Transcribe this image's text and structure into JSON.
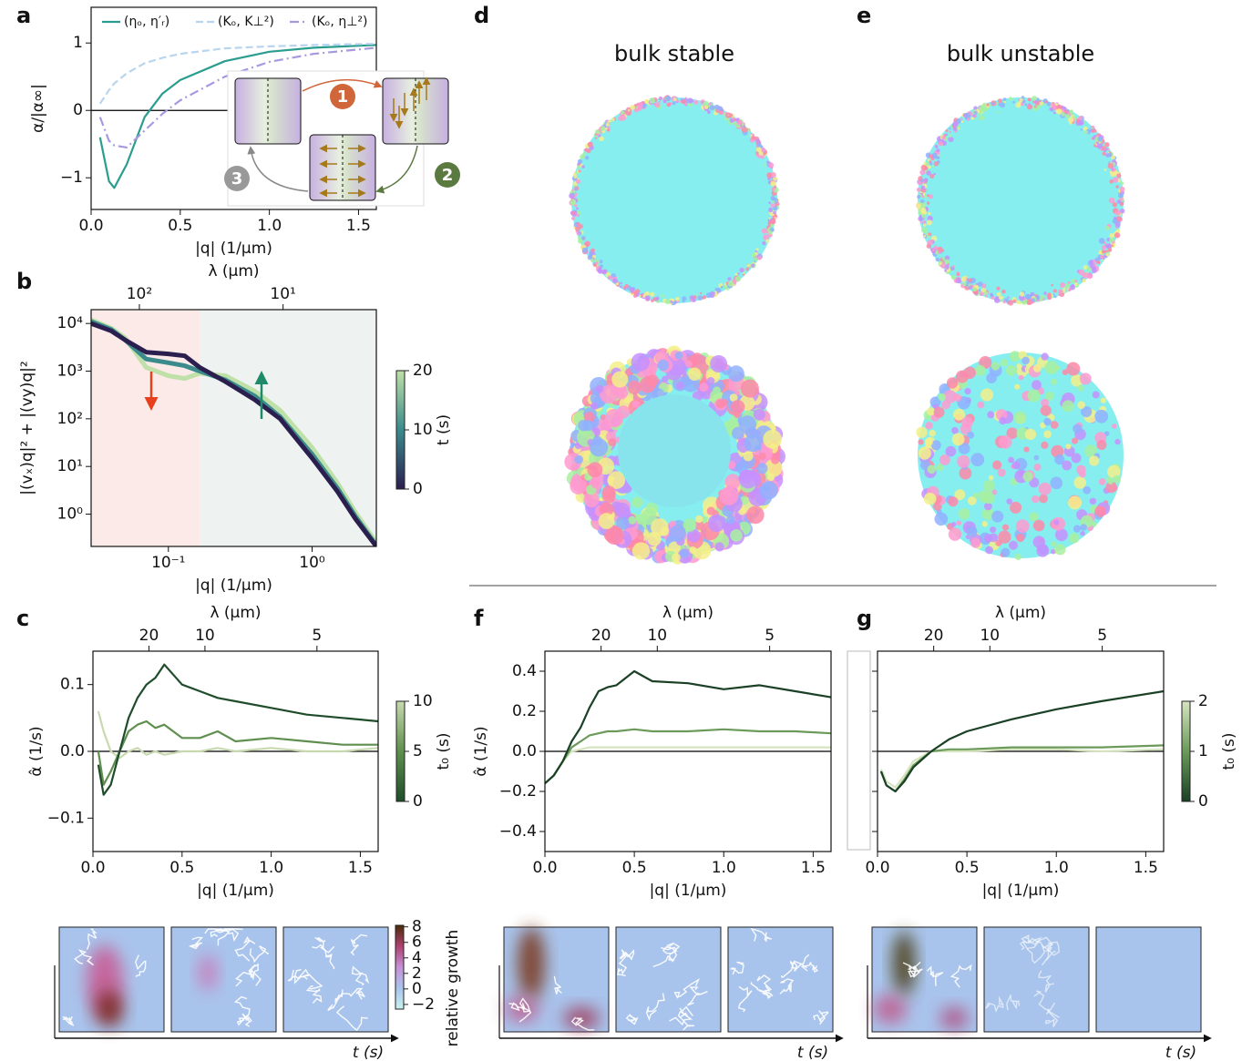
{
  "chart_data": [
    {
      "label": "a",
      "type": "line",
      "xlabel": "|q| (1/μm)",
      "ylabel": "α/|α∞|",
      "xlim": [
        0,
        1.6
      ],
      "xticks": [
        {
          "value": 0,
          "label": "0.0"
        },
        0.5,
        {
          "value": 1,
          "label": "1.0"
        },
        1.5
      ],
      "ylim": [
        -1.47,
        1.53
      ],
      "yticks": [
        {
          "value": -1,
          "label": "−1"
        },
        0,
        1
      ],
      "hline": 0,
      "legend": "upper center",
      "x": [
        0.05,
        0.1,
        0.13,
        0.2,
        0.3,
        0.4,
        0.5,
        0.75,
        1.0,
        1.25,
        1.6
      ],
      "series": [
        {
          "name": "(ηₒ, η′ᵣ)",
          "color": "#2a9d8f",
          "style": "solid",
          "values": [
            -0.4,
            -1.05,
            -1.15,
            -0.8,
            -0.1,
            0.25,
            0.45,
            0.73,
            0.87,
            0.93,
            0.97
          ]
        },
        {
          "name": "(Kₒ, K⊥²)",
          "color": "#b9d5ee",
          "style": "dashed",
          "values": [
            0.1,
            0.3,
            0.4,
            0.55,
            0.7,
            0.78,
            0.84,
            0.92,
            0.95,
            0.97,
            0.99
          ]
        },
        {
          "name": "(Kₒ, η⊥²)",
          "color": "#a898e0",
          "style": "dashdot",
          "values": [
            -0.1,
            -0.45,
            -0.52,
            -0.55,
            -0.3,
            -0.05,
            0.15,
            0.5,
            0.72,
            0.84,
            0.93
          ]
        }
      ],
      "inset_steps": [
        "1",
        "2",
        "3"
      ]
    },
    {
      "label": "b",
      "type": "line",
      "xlabel": "|q| (1/μm)",
      "ylabel": "|(vₓ)q|² + |(vy)q|²",
      "xlog": true,
      "ylog": true,
      "xlim": [
        0.029,
        2.8
      ],
      "xticks": [
        {
          "value": 0.1,
          "label": "10⁻¹"
        },
        {
          "value": 1,
          "label": "10⁰"
        }
      ],
      "ylim": [
        0.21,
        19500
      ],
      "yticks": [
        {
          "value": 1,
          "label": "10⁰"
        },
        {
          "value": 10,
          "label": "10¹"
        },
        {
          "value": 100,
          "label": "10²"
        },
        {
          "value": 1000,
          "label": "10³"
        },
        {
          "value": 10000,
          "label": "10⁴"
        }
      ],
      "x2label": "λ (μm)",
      "x2ticks": [
        {
          "value": 100,
          "label": "10²"
        },
        {
          "value": 10,
          "label": "10¹"
        }
      ],
      "regions": [
        {
          "xlim": [
            0.029,
            0.165
          ],
          "color": "#fbeae8"
        },
        {
          "xlim": [
            0.165,
            2.8
          ],
          "color": "#eef3f1"
        }
      ],
      "x": [
        0.029,
        0.04,
        0.05,
        0.07,
        0.1,
        0.13,
        0.165,
        0.25,
        0.4,
        0.6,
        1.0,
        1.5,
        2.0,
        2.8
      ],
      "series": [
        {
          "color": "#bfe0a8",
          "values": [
            12000,
            8000,
            5000,
            1200,
            800,
            700,
            900,
            800,
            380,
            150,
            25,
            4.5,
            1.1,
            0.25
          ]
        },
        {
          "color": "#3b8a8c",
          "values": [
            11000,
            7500,
            4500,
            1800,
            1500,
            1300,
            1000,
            650,
            300,
            110,
            18,
            3.5,
            0.9,
            0.22
          ]
        },
        {
          "color": "#2b1f4f",
          "values": [
            10000,
            7000,
            4500,
            2500,
            2300,
            2100,
            1200,
            600,
            250,
            100,
            15,
            3,
            0.8,
            0.21
          ]
        }
      ],
      "colorbar": {
        "label": "t (s)",
        "lim": [
          0,
          20
        ],
        "ticks": [
          0,
          10,
          20
        ],
        "colors": [
          "#2b1f4f",
          "#3b8a8c",
          "#bfe0a8"
        ]
      }
    },
    {
      "label": "c",
      "type": "line",
      "xlabel": "|q| (1/μm)",
      "ylabel": "α̂ (1/s)",
      "xlim": [
        0,
        1.6
      ],
      "xticks": [
        {
          "value": 0,
          "label": "0.0"
        },
        0.5,
        {
          "value": 1,
          "label": "1.0"
        },
        1.5
      ],
      "ylim": [
        -0.15,
        0.15
      ],
      "yticks": [
        {
          "value": -0.1,
          "label": "−0.1"
        },
        {
          "value": 0,
          "label": "0.0"
        },
        0.1
      ],
      "hline": 0,
      "x2label": "λ (μm)",
      "x2ticks": [
        20,
        10,
        5
      ],
      "x": [
        0.03,
        0.06,
        0.1,
        0.15,
        0.2,
        0.25,
        0.3,
        0.35,
        0.4,
        0.5,
        0.6,
        0.7,
        0.8,
        1.0,
        1.2,
        1.4,
        1.6
      ],
      "series": [
        {
          "color": "#c8d9b0",
          "values": [
            0.06,
            0.03,
            0.0,
            -0.01,
            0.0,
            0.005,
            -0.005,
            0.0,
            -0.005,
            0.0,
            0.0,
            0.005,
            0.0,
            0.005,
            0.0,
            0.0,
            0.005
          ]
        },
        {
          "color": "#5f8f4e",
          "values": [
            0.0,
            -0.05,
            -0.03,
            0.0,
            0.03,
            0.04,
            0.045,
            0.035,
            0.04,
            0.02,
            0.02,
            0.03,
            0.015,
            0.02,
            0.015,
            0.01,
            0.01
          ]
        },
        {
          "color": "#1f4d2b",
          "values": [
            -0.02,
            -0.065,
            -0.05,
            0.0,
            0.05,
            0.08,
            0.1,
            0.11,
            0.13,
            0.1,
            0.09,
            0.08,
            0.075,
            0.065,
            0.055,
            0.05,
            0.045
          ]
        }
      ],
      "colorbar": {
        "label": "t₀ (s)",
        "lim": [
          0,
          10
        ],
        "ticks": [
          0,
          5,
          10
        ],
        "colors": [
          "#1f4d2b",
          "#5f8f4e",
          "#c8d9b0"
        ]
      }
    },
    {
      "label": "f",
      "type": "line",
      "xlabel": "|q| (1/μm)",
      "ylabel": "α̂ (1/s)",
      "xlim": [
        0,
        1.6
      ],
      "xticks": [
        {
          "value": 0,
          "label": "0.0"
        },
        0.5,
        {
          "value": 1,
          "label": "1.0"
        },
        1.5
      ],
      "ylim": [
        -0.5,
        0.5
      ],
      "yticks": [
        {
          "value": -0.4,
          "label": "−0.4"
        },
        {
          "value": -0.2,
          "label": "−0.2"
        },
        {
          "value": 0,
          "label": "0.0"
        },
        0.2,
        0.4
      ],
      "hline": 0,
      "x2label": "λ (μm)",
      "x2ticks": [
        20,
        10,
        5
      ],
      "x": [
        0.0,
        0.05,
        0.1,
        0.15,
        0.2,
        0.25,
        0.3,
        0.35,
        0.4,
        0.5,
        0.6,
        0.8,
        1.0,
        1.2,
        1.4,
        1.6
      ],
      "series": [
        {
          "color": "#d6e4c0",
          "values": [
            -0.16,
            -0.12,
            -0.05,
            0.0,
            0.01,
            0.02,
            0.02,
            0.02,
            0.02,
            0.02,
            0.02,
            0.02,
            0.02,
            0.02,
            0.02,
            0.02
          ]
        },
        {
          "color": "#6b9a5a",
          "values": [
            -0.16,
            -0.12,
            -0.05,
            0.02,
            0.05,
            0.08,
            0.09,
            0.1,
            0.1,
            0.11,
            0.1,
            0.1,
            0.11,
            0.1,
            0.1,
            0.09
          ]
        },
        {
          "color": "#1a4025",
          "values": [
            -0.16,
            -0.12,
            -0.05,
            0.05,
            0.12,
            0.22,
            0.3,
            0.32,
            0.33,
            0.4,
            0.35,
            0.34,
            0.31,
            0.33,
            0.3,
            0.27
          ]
        }
      ]
    },
    {
      "label": "g",
      "type": "line",
      "xlabel": "|q| (1/μm)",
      "ytick_labels": false,
      "xlim": [
        0,
        1.6
      ],
      "xticks": [
        {
          "value": 0,
          "label": "0.0"
        },
        0.5,
        {
          "value": 1,
          "label": "1.0"
        },
        1.5
      ],
      "ylim": [
        -0.5,
        0.5
      ],
      "yticks": [
        -0.4,
        -0.2,
        0,
        0.2,
        0.4
      ],
      "hline": 0,
      "x2label": "λ (μm)",
      "x2ticks": [
        20,
        10,
        5
      ],
      "x": [
        0.02,
        0.05,
        0.1,
        0.15,
        0.2,
        0.3,
        0.4,
        0.5,
        0.75,
        1.0,
        1.25,
        1.6
      ],
      "series": [
        {
          "color": "#d6e4c0",
          "values": [
            -0.09,
            -0.15,
            -0.18,
            -0.12,
            -0.05,
            0.0,
            0.0,
            0.0,
            0.01,
            0.01,
            0.0,
            0.01
          ]
        },
        {
          "color": "#6b9a5a",
          "values": [
            -0.1,
            -0.17,
            -0.2,
            -0.14,
            -0.07,
            0.0,
            0.01,
            0.01,
            0.02,
            0.02,
            0.02,
            0.03
          ]
        },
        {
          "color": "#1a4025",
          "values": [
            -0.1,
            -0.17,
            -0.2,
            -0.15,
            -0.08,
            0.0,
            0.06,
            0.1,
            0.16,
            0.21,
            0.25,
            0.3
          ]
        }
      ],
      "colorbar": {
        "label": "t₀ (s)",
        "lim": [
          0,
          2
        ],
        "ticks": [
          0,
          1,
          2
        ],
        "colors": [
          "#1a4025",
          "#6b9a5a",
          "#d6e4c0"
        ]
      }
    }
  ],
  "simulations": [
    {
      "label": "d",
      "title": "bulk stable"
    },
    {
      "label": "e",
      "title": "bulk unstable"
    }
  ],
  "growth_maps": {
    "time_label": "t (s)",
    "colorbar": {
      "label": "relative growth",
      "lim": [
        -2.6,
        8.2
      ],
      "ticks": [
        {
          "value": -2,
          "label": "−2"
        },
        0,
        2,
        4,
        6,
        8
      ]
    }
  }
}
